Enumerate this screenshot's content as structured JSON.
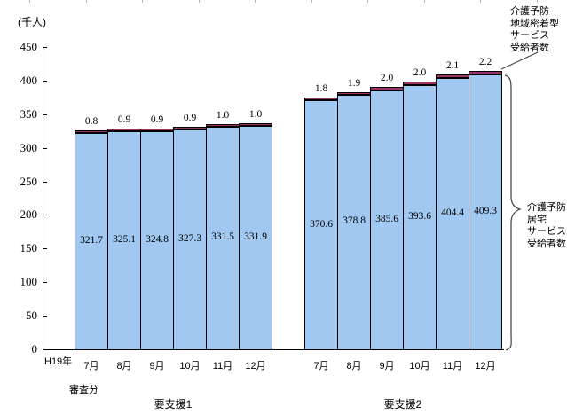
{
  "chart_data": {
    "type": "bar",
    "stacked": true,
    "title": "",
    "unit_label": "(千人)",
    "era_label": "H19年",
    "assessment_label": "審査分",
    "ylim": [
      0,
      450
    ],
    "ytick_interval": 50,
    "ytick_labels": [
      "0",
      "50",
      "100",
      "150",
      "200",
      "250",
      "300",
      "350",
      "400",
      "450"
    ],
    "grid": false,
    "legend_position": "right-annotations",
    "series_names": {
      "community": "介護予防地域密着型サービス受給者数",
      "home": "介護予防居宅サービス受給者数"
    },
    "annotation_community": "介護予防\n地域密着型\nサービス\n受給者数",
    "annotation_home": "介護予防\n居宅\nサービス\n受給者数",
    "categories": [
      "7月",
      "8月",
      "9月",
      "10月",
      "11月",
      "12月"
    ],
    "groups": [
      {
        "label": "要支援1",
        "months": [
          "7月",
          "8月",
          "9月",
          "10月",
          "11月",
          "12月"
        ],
        "home_service_values": [
          321.7,
          325.1,
          324.8,
          327.3,
          331.5,
          331.9
        ],
        "community_service_values": [
          0.8,
          0.9,
          0.9,
          0.9,
          1.0,
          1.0
        ]
      },
      {
        "label": "要支援2",
        "months": [
          "7月",
          "8月",
          "9月",
          "10月",
          "11月",
          "12月"
        ],
        "home_service_values": [
          370.6,
          378.8,
          385.6,
          393.6,
          404.4,
          409.3
        ],
        "community_service_values": [
          1.8,
          1.9,
          2.0,
          2.0,
          2.1,
          2.2
        ]
      }
    ],
    "colors": {
      "home_service_fill": "#A0C8F0",
      "community_service_fill": "#993366",
      "bar_border": "#000000",
      "axis": "#000000",
      "brace": "#404040"
    }
  }
}
